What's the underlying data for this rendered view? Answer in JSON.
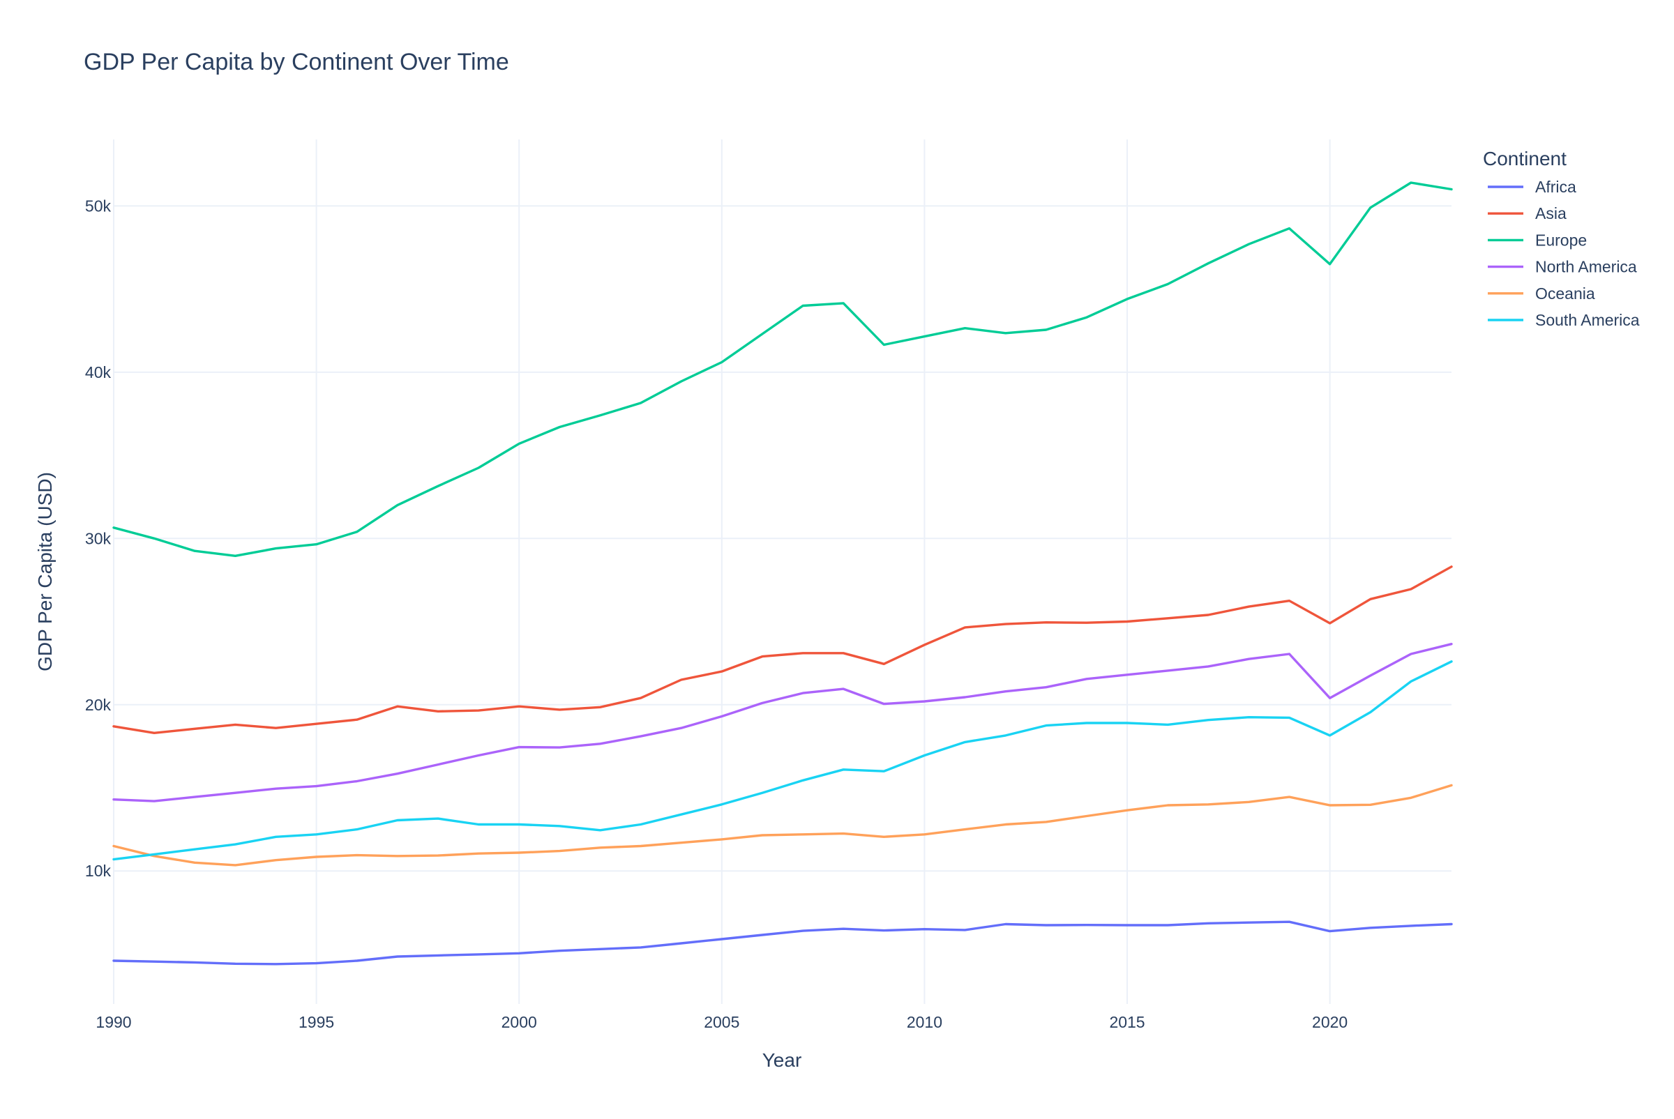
{
  "chart_data": {
    "type": "line",
    "title": "GDP Per Capita by Continent Over Time",
    "xlabel": "Year",
    "ylabel": "GDP Per Capita (USD)",
    "xlim": [
      1990,
      2023
    ],
    "ylim": [
      2000,
      54000
    ],
    "x_ticks": [
      1990,
      1995,
      2000,
      2005,
      2010,
      2015,
      2020
    ],
    "x_tick_labels": [
      "1990",
      "1995",
      "2000",
      "2005",
      "2010",
      "2015",
      "2020"
    ],
    "y_ticks": [
      10000,
      20000,
      30000,
      40000,
      50000
    ],
    "y_tick_labels": [
      "10k",
      "20k",
      "30k",
      "40k",
      "50k"
    ],
    "grid": true,
    "legend_title": "Continent",
    "legend_position": "top-right outside plot",
    "x": [
      1990,
      1991,
      1992,
      1993,
      1994,
      1995,
      1996,
      1997,
      1998,
      1999,
      2000,
      2001,
      2002,
      2003,
      2004,
      2005,
      2006,
      2007,
      2008,
      2009,
      2010,
      2011,
      2012,
      2013,
      2014,
      2015,
      2016,
      2017,
      2018,
      2019,
      2020,
      2021,
      2022,
      2023
    ],
    "series": [
      {
        "name": "Africa",
        "color": "#636efa",
        "values": [
          4600,
          4550,
          4500,
          4420,
          4400,
          4450,
          4600,
          4850,
          4920,
          4980,
          5050,
          5200,
          5300,
          5400,
          5650,
          5900,
          6150,
          6400,
          6520,
          6420,
          6500,
          6450,
          6800,
          6740,
          6750,
          6740,
          6740,
          6850,
          6900,
          6940,
          6380,
          6580,
          6700,
          6800
        ]
      },
      {
        "name": "Asia",
        "color": "#ef553b",
        "values": [
          18700,
          18300,
          18550,
          18800,
          18600,
          18850,
          19100,
          19900,
          19600,
          19650,
          19900,
          19700,
          19850,
          20400,
          21500,
          22000,
          22900,
          23100,
          23100,
          22450,
          23600,
          24650,
          24850,
          24950,
          24930,
          25000,
          25200,
          25400,
          25900,
          26250,
          24900,
          26350,
          26950,
          28300
        ]
      },
      {
        "name": "Europe",
        "color": "#00cc96",
        "values": [
          30650,
          30000,
          29250,
          28950,
          29400,
          29650,
          30400,
          32000,
          33150,
          34250,
          35700,
          36700,
          37400,
          38150,
          39450,
          40600,
          42300,
          44000,
          44150,
          41650,
          42150,
          42650,
          42350,
          42550,
          43300,
          44400,
          45300,
          46550,
          47700,
          48650,
          46500,
          49900,
          51400,
          51000
        ]
      },
      {
        "name": "North America",
        "color": "#ab63fa",
        "values": [
          14300,
          14200,
          14450,
          14700,
          14950,
          15100,
          15400,
          15850,
          16400,
          16950,
          17450,
          17430,
          17650,
          18100,
          18600,
          19300,
          20100,
          20700,
          20950,
          20050,
          20200,
          20450,
          20800,
          21050,
          21550,
          21800,
          22050,
          22300,
          22750,
          23050,
          20400,
          21750,
          23050,
          23650
        ]
      },
      {
        "name": "Oceania",
        "color": "#ffa15a",
        "values": [
          11500,
          10900,
          10500,
          10350,
          10650,
          10850,
          10950,
          10900,
          10930,
          11050,
          11100,
          11200,
          11400,
          11500,
          11700,
          11900,
          12150,
          12200,
          12250,
          12050,
          12200,
          12500,
          12800,
          12950,
          13300,
          13650,
          13950,
          14000,
          14150,
          14450,
          13950,
          13980,
          14400,
          15150
        ]
      },
      {
        "name": "South America",
        "color": "#19d3f3",
        "values": [
          10700,
          11000,
          11300,
          11600,
          12050,
          12200,
          12500,
          13050,
          13150,
          12800,
          12800,
          12700,
          12450,
          12800,
          13400,
          14000,
          14700,
          15450,
          16100,
          16000,
          16950,
          17750,
          18150,
          18750,
          18900,
          18900,
          18800,
          19080,
          19250,
          19220,
          18150,
          19550,
          21400,
          22600
        ]
      }
    ]
  }
}
